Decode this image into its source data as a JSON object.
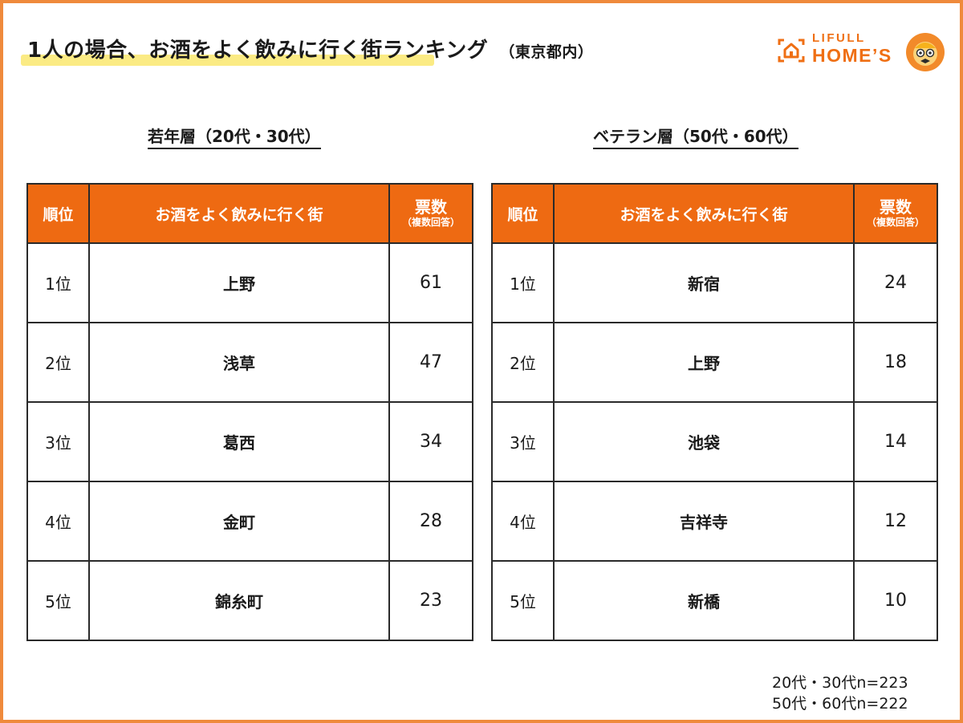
{
  "title": "1人の場合、お酒をよく飲みに行く街ランキング",
  "subtitle": "（東京都内）",
  "logo": {
    "top": "LIFULL",
    "bottom": "HOME’S"
  },
  "groups": [
    {
      "label": "若年層（20代・30代）",
      "headers": {
        "rank": "順位",
        "town": "お酒をよく飲みに行く街",
        "votes": "票数",
        "votes_note": "（複数回答）"
      },
      "rows": [
        {
          "rank": "1位",
          "town": "上野",
          "votes": "61"
        },
        {
          "rank": "2位",
          "town": "浅草",
          "votes": "47"
        },
        {
          "rank": "3位",
          "town": "葛西",
          "votes": "34"
        },
        {
          "rank": "4位",
          "town": "金町",
          "votes": "28"
        },
        {
          "rank": "5位",
          "town": "錦糸町",
          "votes": "23"
        }
      ]
    },
    {
      "label": "ベテラン層（50代・60代）",
      "headers": {
        "rank": "順位",
        "town": "お酒をよく飲みに行く街",
        "votes": "票数",
        "votes_note": "（複数回答）"
      },
      "rows": [
        {
          "rank": "1位",
          "town": "新宿",
          "votes": "24"
        },
        {
          "rank": "2位",
          "town": "上野",
          "votes": "18"
        },
        {
          "rank": "3位",
          "town": "池袋",
          "votes": "14"
        },
        {
          "rank": "4位",
          "town": "吉祥寺",
          "votes": "12"
        },
        {
          "rank": "5位",
          "town": "新橋",
          "votes": "10"
        }
      ]
    }
  ],
  "notes": [
    "20代・30代n=223",
    "50代・60代n=222"
  ],
  "colors": {
    "accent": "#ee6a12",
    "frame": "#ef8a3c",
    "highlight": "#fbeb84"
  },
  "icons": {
    "logo": "house-icon",
    "mascot": "mascot-icon"
  }
}
